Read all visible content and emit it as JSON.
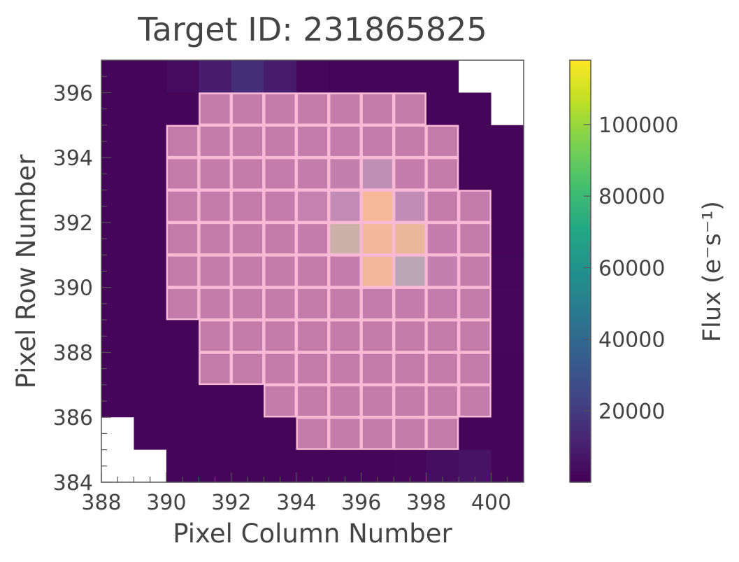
{
  "chart_data": {
    "type": "heatmap",
    "title": "Target ID: 231865825",
    "xlabel": "Pixel Column Number",
    "ylabel": "Pixel Row Number",
    "xlim": [
      388,
      401
    ],
    "ylim": [
      384,
      397
    ],
    "xticks": [
      388,
      390,
      392,
      394,
      396,
      398,
      400
    ],
    "yticks": [
      384,
      386,
      388,
      390,
      392,
      394,
      396
    ],
    "colorbar": {
      "label": "Flux (e⁻s⁻¹)",
      "colormap": "viridis",
      "range": [
        0,
        118000
      ],
      "ticks": [
        20000,
        40000,
        60000,
        80000,
        100000
      ]
    },
    "mask_color": "#f4a6c8",
    "mask_edge_color": "#f7b9d4",
    "missing_color": "#ffffff",
    "flux_grid_note": "rows listed from top (396) to bottom (384), columns 388..400",
    "flux": [
      [
        1500,
        1500,
        3500,
        9000,
        15000,
        9000,
        2000,
        1500,
        1500,
        1500,
        1500,
        null,
        null
      ],
      [
        1500,
        1500,
        1500,
        3500,
        4000,
        3500,
        3500,
        3500,
        3500,
        3500,
        1500,
        1500,
        null
      ],
      [
        1500,
        1500,
        3500,
        3500,
        4000,
        4000,
        4500,
        4500,
        4500,
        4000,
        3500,
        1500,
        1500
      ],
      [
        1500,
        1500,
        3500,
        3500,
        4000,
        4500,
        6000,
        8000,
        30000,
        5000,
        4000,
        1500,
        1500
      ],
      [
        1500,
        1500,
        3500,
        3500,
        3500,
        4500,
        12000,
        25000,
        118000,
        28000,
        4000,
        3500,
        1500
      ],
      [
        1500,
        1500,
        3500,
        3500,
        3500,
        4000,
        5000,
        90000,
        115000,
        110000,
        5000,
        3500,
        1500
      ],
      [
        1500,
        1500,
        3500,
        3500,
        3500,
        4000,
        4000,
        6500,
        115000,
        70000,
        8000,
        3500,
        2000
      ],
      [
        1500,
        1500,
        3500,
        3500,
        3500,
        3500,
        3500,
        3500,
        4500,
        5500,
        4500,
        4000,
        2500
      ],
      [
        1500,
        1500,
        1500,
        3500,
        3500,
        3500,
        3500,
        3500,
        3500,
        3500,
        3500,
        3500,
        2000
      ],
      [
        1500,
        1500,
        1500,
        3500,
        3500,
        3500,
        3500,
        3500,
        3500,
        3500,
        3500,
        3500,
        1500
      ],
      [
        1500,
        1500,
        1500,
        1500,
        1500,
        3500,
        3500,
        3500,
        3500,
        3500,
        3500,
        3500,
        1500
      ],
      [
        null,
        1500,
        1500,
        1500,
        1500,
        1500,
        3500,
        3500,
        3500,
        3500,
        3500,
        1500,
        1500
      ],
      [
        null,
        null,
        1500,
        1500,
        1500,
        1500,
        1500,
        1500,
        1500,
        2500,
        4500,
        6000,
        1500
      ]
    ],
    "mask": [
      [
        0,
        0,
        0,
        0,
        0,
        0,
        0,
        0,
        0,
        0,
        0,
        0,
        0
      ],
      [
        0,
        0,
        0,
        1,
        1,
        1,
        1,
        1,
        1,
        1,
        0,
        0,
        0
      ],
      [
        0,
        0,
        1,
        1,
        1,
        1,
        1,
        1,
        1,
        1,
        1,
        0,
        0
      ],
      [
        0,
        0,
        1,
        1,
        1,
        1,
        1,
        1,
        1,
        1,
        1,
        0,
        0
      ],
      [
        0,
        0,
        1,
        1,
        1,
        1,
        1,
        1,
        1,
        1,
        1,
        1,
        0
      ],
      [
        0,
        0,
        1,
        1,
        1,
        1,
        1,
        1,
        1,
        1,
        1,
        1,
        0
      ],
      [
        0,
        0,
        1,
        1,
        1,
        1,
        1,
        1,
        1,
        1,
        1,
        1,
        0
      ],
      [
        0,
        0,
        1,
        1,
        1,
        1,
        1,
        1,
        1,
        1,
        1,
        1,
        0
      ],
      [
        0,
        0,
        0,
        1,
        1,
        1,
        1,
        1,
        1,
        1,
        1,
        1,
        0
      ],
      [
        0,
        0,
        0,
        1,
        1,
        1,
        1,
        1,
        1,
        1,
        1,
        1,
        0
      ],
      [
        0,
        0,
        0,
        0,
        0,
        1,
        1,
        1,
        1,
        1,
        1,
        1,
        0
      ],
      [
        0,
        0,
        0,
        0,
        0,
        0,
        1,
        1,
        1,
        1,
        1,
        0,
        0
      ],
      [
        0,
        0,
        0,
        0,
        0,
        0,
        0,
        0,
        0,
        0,
        0,
        0,
        0
      ]
    ]
  }
}
